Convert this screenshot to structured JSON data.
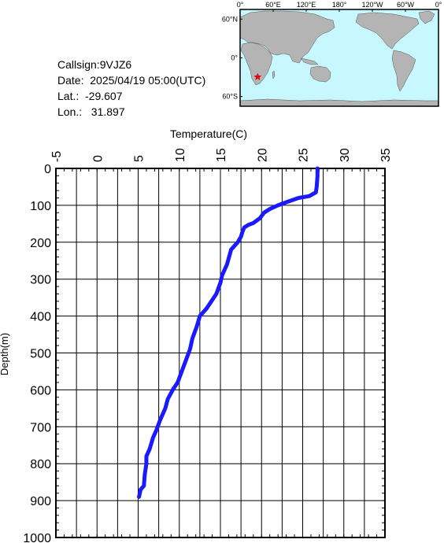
{
  "info": {
    "callsign": "Callsign:9VJZ6",
    "date": "Date:  2025/04/19 05:00(UTC)",
    "lat": "Lat.:  -29.607",
    "lon": "Lon.:   31.897"
  },
  "map": {
    "lon_labels": [
      "0°",
      "60°E",
      "120°E",
      "180°",
      "120°W",
      "60°W",
      "0°"
    ],
    "lat_labels": [
      "60°N",
      "0°",
      "60°S"
    ],
    "station": {
      "lat": -29.607,
      "lon": 31.897,
      "marker_color": "#ff0000"
    },
    "ocean_color": "#c8f8ff",
    "land_color": "#b4b4b4"
  },
  "chart_data": {
    "type": "line",
    "title": "",
    "xlabel": "Temperature(C)",
    "ylabel": "Depth(m)",
    "xlim": [
      -5,
      35
    ],
    "ylim": [
      0,
      1000
    ],
    "y_inverted": true,
    "x_ticks": [
      "-5",
      "0",
      "5",
      "10",
      "15",
      "20",
      "25",
      "30",
      "35"
    ],
    "y_ticks": [
      "0",
      "100",
      "200",
      "300",
      "400",
      "500",
      "600",
      "700",
      "800",
      "900",
      "1000"
    ],
    "grid": true,
    "series": [
      {
        "color": "#1a1aff",
        "x": [
          26.8,
          26.8,
          26.7,
          26.6,
          25.8,
          24.5,
          23.2,
          22.0,
          21.0,
          20.3,
          19.8,
          19.0,
          18.4,
          17.9,
          17.7,
          17.5,
          17.1,
          16.3,
          15.8,
          15.2,
          15.0,
          14.5,
          13.9,
          13.3,
          12.5,
          12.1,
          11.6,
          11.3,
          10.8,
          10.3,
          9.8,
          9.2,
          8.6,
          8.3,
          7.7,
          7.2,
          6.8,
          6.4,
          6.0,
          6.0,
          5.8,
          5.7,
          5.3,
          5.1
        ],
        "y": [
          0,
          20,
          50,
          65,
          75,
          80,
          90,
          100,
          110,
          120,
          135,
          148,
          153,
          160,
          170,
          185,
          200,
          220,
          260,
          290,
          310,
          340,
          360,
          380,
          400,
          430,
          460,
          490,
          520,
          550,
          580,
          600,
          625,
          650,
          680,
          710,
          730,
          760,
          780,
          800,
          830,
          860,
          870,
          890
        ]
      }
    ]
  }
}
